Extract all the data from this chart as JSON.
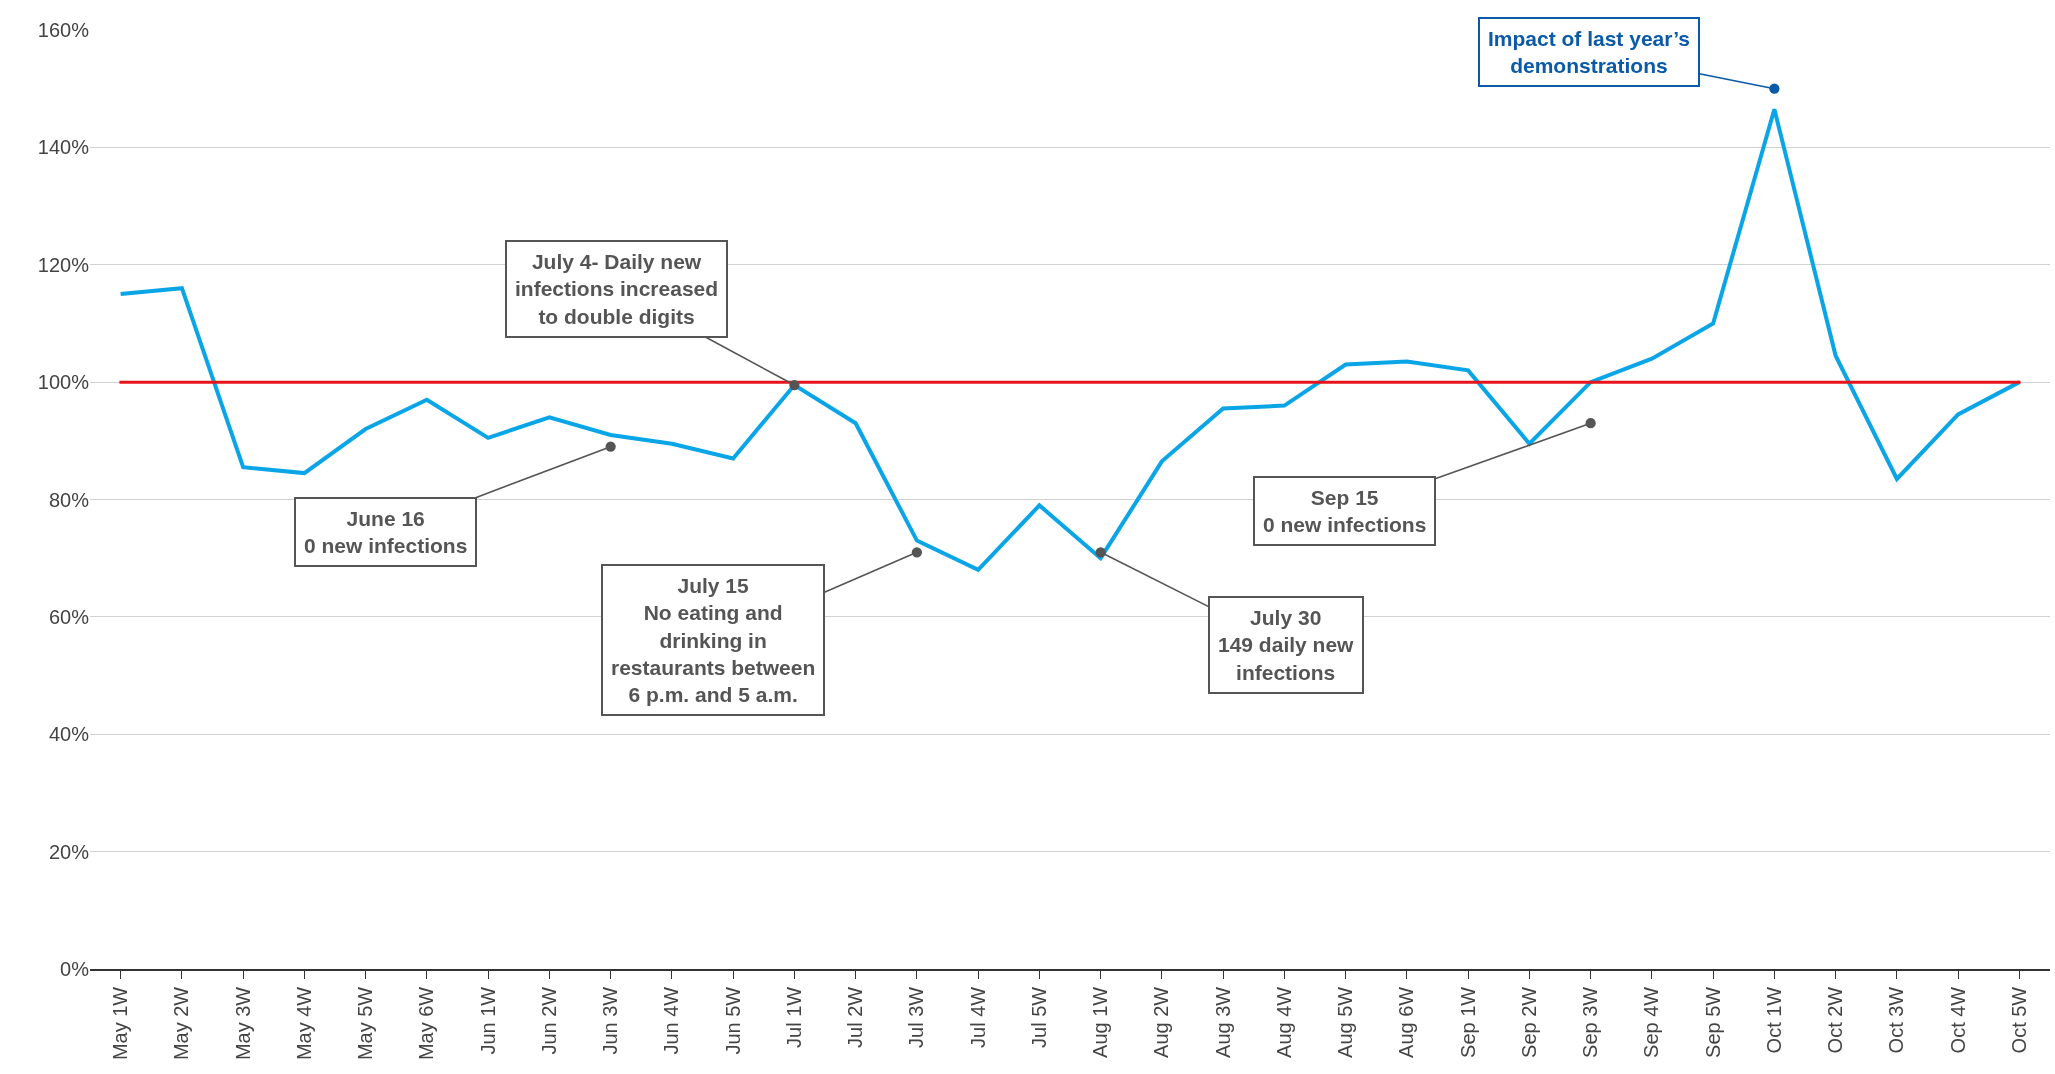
{
  "chart_data": {
    "type": "line",
    "categories": [
      "May 1W",
      "May 2W",
      "May 3W",
      "May 4W",
      "May 5W",
      "May 6W",
      "Jun 1W",
      "Jun 2W",
      "Jun 3W",
      "Jun 4W",
      "Jun 5W",
      "Jul 1W",
      "Jul 2W",
      "Jul 3W",
      "Jul 4W",
      "Jul 5W",
      "Aug 1W",
      "Aug 2W",
      "Aug 3W",
      "Aug 4W",
      "Aug 5W",
      "Aug 6W",
      "Sep 1W",
      "Sep 2W",
      "Sep 3W",
      "Sep 4W",
      "Sep 5W",
      "Oct 1W",
      "Oct 2W",
      "Oct 3W",
      "Oct 4W",
      "Oct 5W"
    ],
    "series": [
      {
        "color": "#0aa5e6",
        "values": [
          115,
          116,
          85.5,
          84.5,
          92,
          97,
          90.5,
          94,
          91,
          89.5,
          87,
          99.5,
          93,
          73,
          68,
          79,
          70,
          86.5,
          95.5,
          96,
          103,
          103.5,
          102,
          89.5,
          100,
          104,
          110,
          146.5,
          104.5,
          83.5,
          94.5,
          100
        ]
      }
    ],
    "ylim": [
      0,
      160
    ],
    "yticks": [
      {
        "value": 0,
        "label": "0%"
      },
      {
        "value": 20,
        "label": "20%"
      },
      {
        "value": 40,
        "label": "40%"
      },
      {
        "value": 60,
        "label": "60%"
      },
      {
        "value": 80,
        "label": "80%"
      },
      {
        "value": 100,
        "label": "100%"
      },
      {
        "value": 120,
        "label": "120%"
      },
      {
        "value": 140,
        "label": "140%"
      },
      {
        "value": 160,
        "label": "160%"
      }
    ],
    "grid": "y",
    "legend": false,
    "marker": "none",
    "line_style": "solid",
    "ref_lines": [
      {
        "axis": "y",
        "value": 100,
        "color": "#e8141b",
        "line_style": "solid"
      }
    ],
    "annotations": [
      {
        "text": "June 16\n0 new infections",
        "x": "Jun 3W",
        "y": 89
      },
      {
        "text": "July 4- Daily new\ninfections increased\nto double digits",
        "x": "Jul 1W",
        "y": 99.5
      },
      {
        "text": "July 15\nNo eating and\ndrinking in\nrestaurants between\n6 p.m. and 5 a.m.",
        "x": "Jul 3W",
        "y": 71
      },
      {
        "text": "July 30\n149 daily new\ninfections",
        "x": "Aug 1W",
        "y": 71
      },
      {
        "text": "Sep 15\n0 new infections",
        "x": "Sep 3W",
        "y": 93
      },
      {
        "text": "Impact of last year’s\ndemonstrations",
        "x": "Oct 1W",
        "y": 150
      }
    ]
  }
}
